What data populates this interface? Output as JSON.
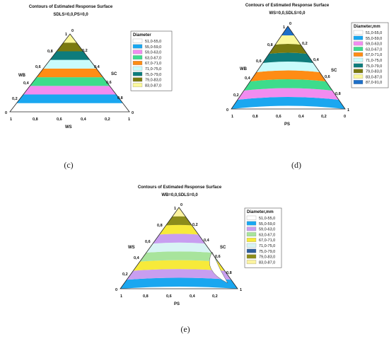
{
  "chart_data": [
    {
      "type": "ternary-contour",
      "panel_label": "(c)",
      "title": "Contours of Estimated Response Surface",
      "subtitle": "SDLS=0,0,PS=0,0",
      "vertex_labels": {
        "top": [
          "1",
          "0"
        ],
        "left": "0",
        "right": "0"
      },
      "left_edge": {
        "label": "WB",
        "ticks": [
          "0,8",
          "0,6",
          "0,4",
          "0,2"
        ]
      },
      "right_edge": {
        "label": "SC",
        "ticks": [
          "0,2",
          "0,4",
          "0,6",
          "0,8"
        ]
      },
      "bottom_edge": {
        "label": "WS",
        "corner_left": "1",
        "corner_right": "1",
        "ticks": [
          "0,8",
          "0,6",
          "0,4",
          "0,2"
        ]
      },
      "legend": {
        "title": "Diameter",
        "entries": [
          {
            "label": "51,0-55,0",
            "color": "#ffffff"
          },
          {
            "label": "55,0-59,0",
            "color": "#1aa7f0"
          },
          {
            "label": "59,0-63,0",
            "color": "#f28cf0"
          },
          {
            "label": "63,0-67,0",
            "color": "#3ddc8c"
          },
          {
            "label": "67,0-71,0",
            "color": "#ff8c14"
          },
          {
            "label": "71,0-75,0",
            "color": "#c9fbfb"
          },
          {
            "label": "75,0-79,0",
            "color": "#0e7c7c"
          },
          {
            "label": "79,0-83,0",
            "color": "#7a7a10"
          },
          {
            "label": "83,0-87,0",
            "color": "#fbf89a"
          }
        ]
      },
      "bands": [
        0,
        1,
        2,
        3,
        4,
        5,
        6,
        7,
        8
      ],
      "mode": "lines"
    },
    {
      "type": "ternary-contour",
      "panel_label": "(d)",
      "title": "Contours of Estimated Response Surface",
      "subtitle": "WS=0,0,SDLS=0,0",
      "vertex_labels": {
        "top": [
          "1",
          "0"
        ],
        "left": "0",
        "right": "1"
      },
      "left_edge": {
        "label": "WB",
        "ticks": [
          "0,8",
          "0,6",
          "0,4",
          "0,2"
        ]
      },
      "right_edge": {
        "label": "SC",
        "ticks": [
          "0,2",
          "0,4",
          "0,6",
          "0,8"
        ]
      },
      "bottom_edge": {
        "label": "PS",
        "corner_left": "1",
        "corner_right": "0",
        "ticks": [
          "0,8",
          "0,6",
          "0,4",
          "0,2"
        ]
      },
      "legend": {
        "title": "Diameter,mm",
        "entries": [
          {
            "label": "51,0-55,0",
            "color": "#ffffff"
          },
          {
            "label": "55,0-59,0",
            "color": "#1aa7f0"
          },
          {
            "label": "59,0-63,0",
            "color": "#f28cf0"
          },
          {
            "label": "63,0-67,0",
            "color": "#3ddc8c"
          },
          {
            "label": "67,0-71,0",
            "color": "#ff8c14"
          },
          {
            "label": "71,0-75,0",
            "color": "#c9fbfb"
          },
          {
            "label": "75,0-79,0",
            "color": "#0e7c7c"
          },
          {
            "label": "79,0-83,0",
            "color": "#7a7a10"
          },
          {
            "label": "83,0-87,0",
            "color": "#fbf89a"
          },
          {
            "label": "87,0-91,0",
            "color": "#1d6fc9"
          }
        ]
      },
      "bands": [
        1,
        2,
        3,
        4,
        5,
        6,
        7,
        8,
        9
      ],
      "mode": "curves"
    },
    {
      "type": "ternary-contour",
      "panel_label": "(e)",
      "title": "Contours of Estimated Response Surface",
      "subtitle": "WB=0,0,SDLS=0,0",
      "vertex_labels": {
        "top": [
          "1",
          "0"
        ],
        "left": "0",
        "right": "1"
      },
      "left_edge": {
        "label": "WS",
        "ticks": [
          "0,8",
          "0,6",
          "0,4",
          "0,2"
        ]
      },
      "right_edge": {
        "label": "SC",
        "ticks": [
          "0,2",
          "0,4",
          "0,6",
          "0,8"
        ]
      },
      "bottom_edge": {
        "label": "PS",
        "corner_left": "1",
        "corner_right": "",
        "ticks": [
          "0,8",
          "0,6",
          "0,4",
          "0,2"
        ]
      },
      "legend": {
        "title": "Diameter,mm",
        "entries": [
          {
            "label": "51,0-55,0",
            "color": "#ffffff"
          },
          {
            "label": "55,0-59,0",
            "color": "#1aa7f0"
          },
          {
            "label": "59,0-63,0",
            "color": "#c89ef0"
          },
          {
            "label": "63,0-67,0",
            "color": "#a8e49c"
          },
          {
            "label": "67,0-71,0",
            "color": "#f7ea3a"
          },
          {
            "label": "71,0-75,0",
            "color": "#d8f4f4"
          },
          {
            "label": "75,0-79,0",
            "color": "#2f5f9c"
          },
          {
            "label": "79,0-83,0",
            "color": "#8c8c1a"
          },
          {
            "label": "83,0-87,0",
            "color": "#fbf3a0"
          }
        ]
      },
      "bands": [
        1,
        2,
        4,
        3,
        5,
        2,
        4,
        7,
        8
      ],
      "mode": "mixed"
    }
  ]
}
